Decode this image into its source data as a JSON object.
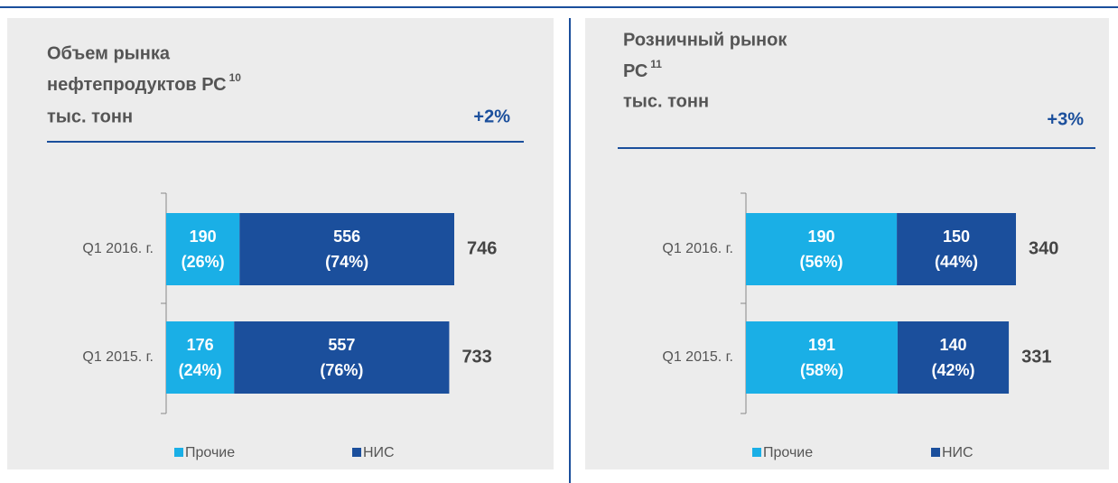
{
  "chart_data": [
    {
      "type": "stacked-bar-horizontal",
      "title": [
        "Объем рынка",
        "нефтепродуктов РС"
      ],
      "footnote": "10",
      "unit": "тыс. тонн",
      "change": "+2%",
      "categories": [
        "Q1 2016. г.",
        "Q1 2015. г."
      ],
      "series": [
        {
          "name": "Прочие",
          "color": "#1aafe6",
          "values": [
            190,
            176
          ],
          "share_labels": [
            "(26%)",
            "(24%)"
          ]
        },
        {
          "name": "НИС",
          "color": "#1b4f9c",
          "values": [
            556,
            557
          ],
          "share_labels": [
            "(74%)",
            "(76%)"
          ]
        }
      ],
      "totals": [
        746,
        733
      ]
    },
    {
      "type": "stacked-bar-horizontal",
      "title": [
        "Розничный рынок",
        "РС"
      ],
      "footnote": "11",
      "unit": "тыс. тонн",
      "change": "+3%",
      "categories": [
        "Q1 2016. г.",
        "Q1 2015. г."
      ],
      "series": [
        {
          "name": "Прочие",
          "color": "#1aafe6",
          "values": [
            190,
            191
          ],
          "share_labels": [
            "(56%)",
            "(58%)"
          ]
        },
        {
          "name": "НИС",
          "color": "#1b4f9c",
          "values": [
            150,
            140
          ],
          "share_labels": [
            "(44%)",
            "(42%)"
          ]
        }
      ],
      "totals": [
        340,
        331
      ]
    }
  ]
}
